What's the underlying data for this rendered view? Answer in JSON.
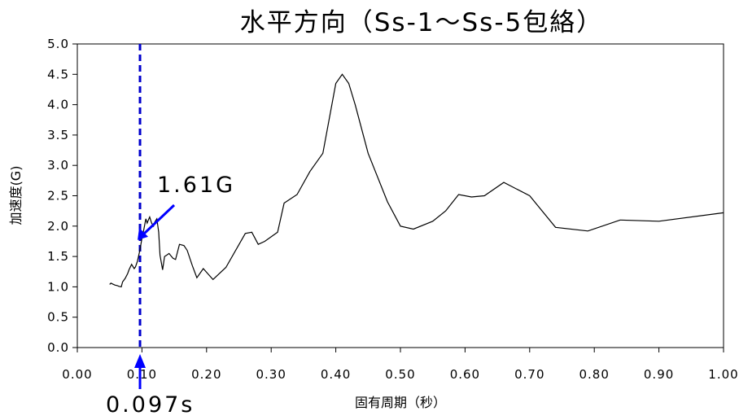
{
  "chart_data": {
    "type": "line",
    "title": "水平方向（Ss-1～Ss-5包絡）",
    "xlabel": "固有周期（秒）",
    "ylabel": "加速度(G)",
    "xlim": [
      0,
      1.0
    ],
    "ylim": [
      0,
      5.0
    ],
    "x_ticks": [
      "0.00",
      "0.10",
      "0.20",
      "0.30",
      "0.40",
      "0.50",
      "0.60",
      "0.70",
      "0.80",
      "0.90",
      "1.00"
    ],
    "y_ticks": [
      "0.0",
      "0.5",
      "1.0",
      "1.5",
      "2.0",
      "2.5",
      "3.0",
      "3.5",
      "4.0",
      "4.5",
      "5.0"
    ],
    "grid": false,
    "series": [
      {
        "x": [
          0.05,
          0.052,
          0.054,
          0.058,
          0.062,
          0.064,
          0.068,
          0.07,
          0.074,
          0.078,
          0.08,
          0.084,
          0.088,
          0.09,
          0.093,
          0.097,
          0.1,
          0.103,
          0.106,
          0.108,
          0.11,
          0.112,
          0.115,
          0.118,
          0.12,
          0.123,
          0.126,
          0.128,
          0.132,
          0.135,
          0.138,
          0.142,
          0.148,
          0.152,
          0.158,
          0.165,
          0.17,
          0.178,
          0.185,
          0.195,
          0.21,
          0.23,
          0.26,
          0.27,
          0.28,
          0.29,
          0.31,
          0.32,
          0.34,
          0.36,
          0.38,
          0.4,
          0.41,
          0.42,
          0.43,
          0.45,
          0.48,
          0.5,
          0.52,
          0.55,
          0.57,
          0.59,
          0.61,
          0.63,
          0.66,
          0.7,
          0.74,
          0.79,
          0.84,
          0.9,
          1.0
        ],
        "y": [
          1.04,
          1.06,
          1.05,
          1.03,
          1.02,
          1.01,
          1.0,
          1.08,
          1.14,
          1.22,
          1.28,
          1.37,
          1.3,
          1.33,
          1.42,
          1.61,
          1.8,
          1.95,
          2.12,
          2.05,
          2.1,
          2.15,
          2.05,
          2.0,
          2.07,
          2.12,
          1.9,
          1.52,
          1.28,
          1.5,
          1.52,
          1.55,
          1.47,
          1.45,
          1.7,
          1.68,
          1.6,
          1.35,
          1.15,
          1.3,
          1.12,
          1.32,
          1.88,
          1.9,
          1.7,
          1.75,
          1.9,
          2.38,
          2.52,
          2.9,
          3.2,
          4.35,
          4.5,
          4.35,
          4.0,
          3.2,
          2.4,
          2.0,
          1.95,
          2.08,
          2.25,
          2.52,
          2.48,
          2.5,
          2.72,
          2.5,
          1.98,
          1.92,
          2.1,
          2.08,
          2.22
        ]
      }
    ],
    "markers": {
      "vline_x": 0.097,
      "vline_color": "#0000cc",
      "period_label": "0.097s",
      "point_y": 1.61,
      "accel_label": "1.61G",
      "arrow_color": "#0000ff"
    }
  }
}
